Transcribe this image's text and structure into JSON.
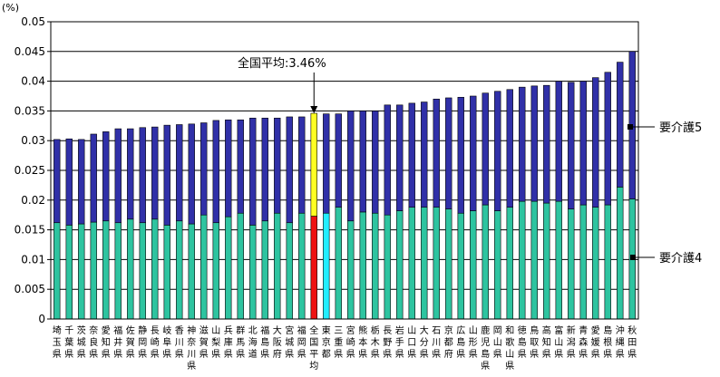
{
  "chart_data": {
    "type": "bar",
    "stacked": true,
    "unit_label": "(%)",
    "ylim": [
      0,
      0.05
    ],
    "yticks": [
      0,
      0.005,
      0.01,
      0.015,
      0.02,
      0.025,
      0.03,
      0.035,
      0.04,
      0.045,
      0.05
    ],
    "ytick_labels": [
      "0",
      "0.005",
      "0.01",
      "0.015",
      "0.02",
      "0.025",
      "0.03",
      "0.035",
      "0.04",
      "0.045",
      "0.05"
    ],
    "grid": true,
    "categories": [
      "埼玉県",
      "千葉県",
      "茨城県",
      "奈良県",
      "愛知県",
      "福井県",
      "佐賀県",
      "静岡県",
      "長崎県",
      "岐阜県",
      "香川県",
      "神奈川県",
      "滋賀県",
      "山梨県",
      "兵庫県",
      "群馬県",
      "北海道",
      "福島県",
      "大阪府",
      "宮城県",
      "福岡県",
      "全国平均",
      "東京都",
      "三重県",
      "宮崎県",
      "熊本県",
      "栃木県",
      "長野県",
      "岩手県",
      "山口県",
      "大分県",
      "石川県",
      "京都府",
      "広島県",
      "山形県",
      "鹿児島県",
      "岡山県",
      "和歌山県",
      "徳島県",
      "鳥取県",
      "高知県",
      "富山県",
      "新潟県",
      "青森県",
      "愛媛県",
      "島根県",
      "沖縄県",
      "秋田県"
    ],
    "series": [
      {
        "name": "要介護4",
        "color": "#2ec4a0",
        "values": [
          0.0162,
          0.0158,
          0.016,
          0.0163,
          0.0165,
          0.0162,
          0.0168,
          0.0162,
          0.0168,
          0.0158,
          0.0165,
          0.016,
          0.0175,
          0.0162,
          0.0172,
          0.0178,
          0.0158,
          0.0165,
          0.0178,
          0.0162,
          0.0178,
          0.0173,
          0.0178,
          0.0188,
          0.0165,
          0.018,
          0.0178,
          0.0175,
          0.0182,
          0.0188,
          0.0188,
          0.0188,
          0.0185,
          0.0178,
          0.0182,
          0.0192,
          0.0182,
          0.0188,
          0.0198,
          0.0198,
          0.0195,
          0.0198,
          0.0185,
          0.0192,
          0.0188,
          0.0192,
          0.0222,
          0.0202
        ]
      },
      {
        "name": "要介護5",
        "color": "#3030a8",
        "values": [
          0.014,
          0.0145,
          0.0142,
          0.0148,
          0.015,
          0.0158,
          0.0152,
          0.016,
          0.0155,
          0.0168,
          0.0162,
          0.0168,
          0.0155,
          0.0172,
          0.0163,
          0.0157,
          0.018,
          0.0173,
          0.016,
          0.0178,
          0.0162,
          0.0173,
          0.0167,
          0.0157,
          0.0185,
          0.017,
          0.0172,
          0.0185,
          0.0178,
          0.0175,
          0.0177,
          0.0182,
          0.0187,
          0.0195,
          0.0193,
          0.0188,
          0.0201,
          0.0198,
          0.0192,
          0.0194,
          0.0198,
          0.0202,
          0.0213,
          0.0208,
          0.0218,
          0.0223,
          0.021,
          0.0248
        ]
      }
    ],
    "highlight": {
      "category": "全国平均",
      "colors": {
        "要介護4": "#ee1111",
        "要介護5": "#ffff22"
      }
    },
    "secondary_highlight": {
      "category": "東京都",
      "colors": {
        "要介護4": "#22eeff"
      }
    },
    "annotation": {
      "text": "全国平均:3.46%",
      "category": "全国平均"
    },
    "legend_labels": [
      "要介護5",
      "要介護4"
    ]
  }
}
